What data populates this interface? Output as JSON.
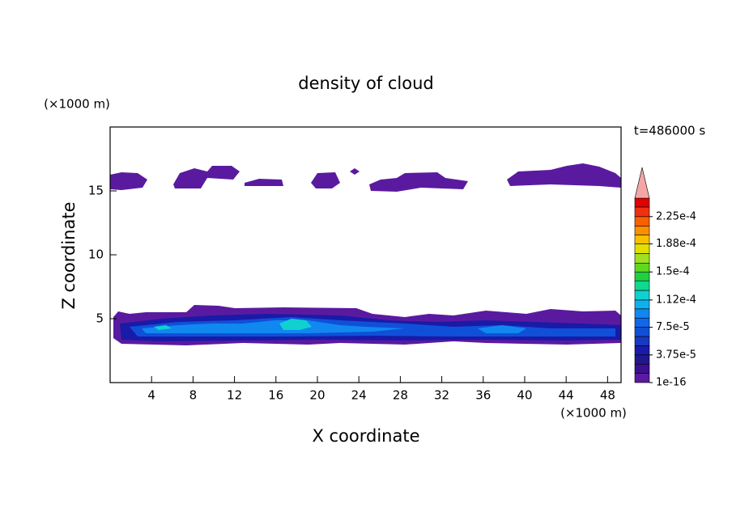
{
  "chart_data": {
    "type": "contour",
    "title": "density of cloud",
    "xlabel": "X coordinate",
    "ylabel": "Z coordinate",
    "x_unit": "(×1000 m)",
    "y_unit": "(×1000 m)",
    "time_label": "t=486000 s",
    "xlim": [
      0,
      49.3
    ],
    "ylim": [
      0,
      20
    ],
    "xticks": [
      4,
      8,
      12,
      16,
      20,
      24,
      28,
      32,
      36,
      40,
      44,
      48
    ],
    "yticks": [
      5,
      10,
      15
    ],
    "colorbar": {
      "levels": [
        1e-16,
        1.25e-05,
        2.5e-05,
        3.75e-05,
        5e-05,
        6.25e-05,
        7.5e-05,
        8.75e-05,
        0.0001,
        0.000112,
        0.000125,
        0.000138,
        0.00015,
        0.000162,
        0.000175,
        0.000188,
        0.0002,
        0.000212,
        0.000225,
        0.000238,
        0.00025
      ],
      "colors": [
        "#5a1aa0",
        "#3a1090",
        "#22188c",
        "#1a1aa8",
        "#1838c0",
        "#1050d8",
        "#1068e8",
        "#1088f0",
        "#10b0f0",
        "#10d0d0",
        "#10d890",
        "#20d040",
        "#60d820",
        "#a0e020",
        "#e0e000",
        "#f8c000",
        "#f89000",
        "#f86000",
        "#f03010",
        "#e00000"
      ],
      "extend_color": "#f4a6a6",
      "ticks": [
        {
          "value": 1e-16,
          "label": "1e-16"
        },
        {
          "value": 3.75e-05,
          "label": "3.75e-5"
        },
        {
          "value": 7.5e-05,
          "label": "7.5e-5"
        },
        {
          "value": 0.000112,
          "label": "1.12e-4"
        },
        {
          "value": 0.00015,
          "label": "1.5e-4"
        },
        {
          "value": 0.000188,
          "label": "1.88e-4"
        },
        {
          "value": 0.000225,
          "label": "2.25e-4"
        }
      ]
    }
  }
}
